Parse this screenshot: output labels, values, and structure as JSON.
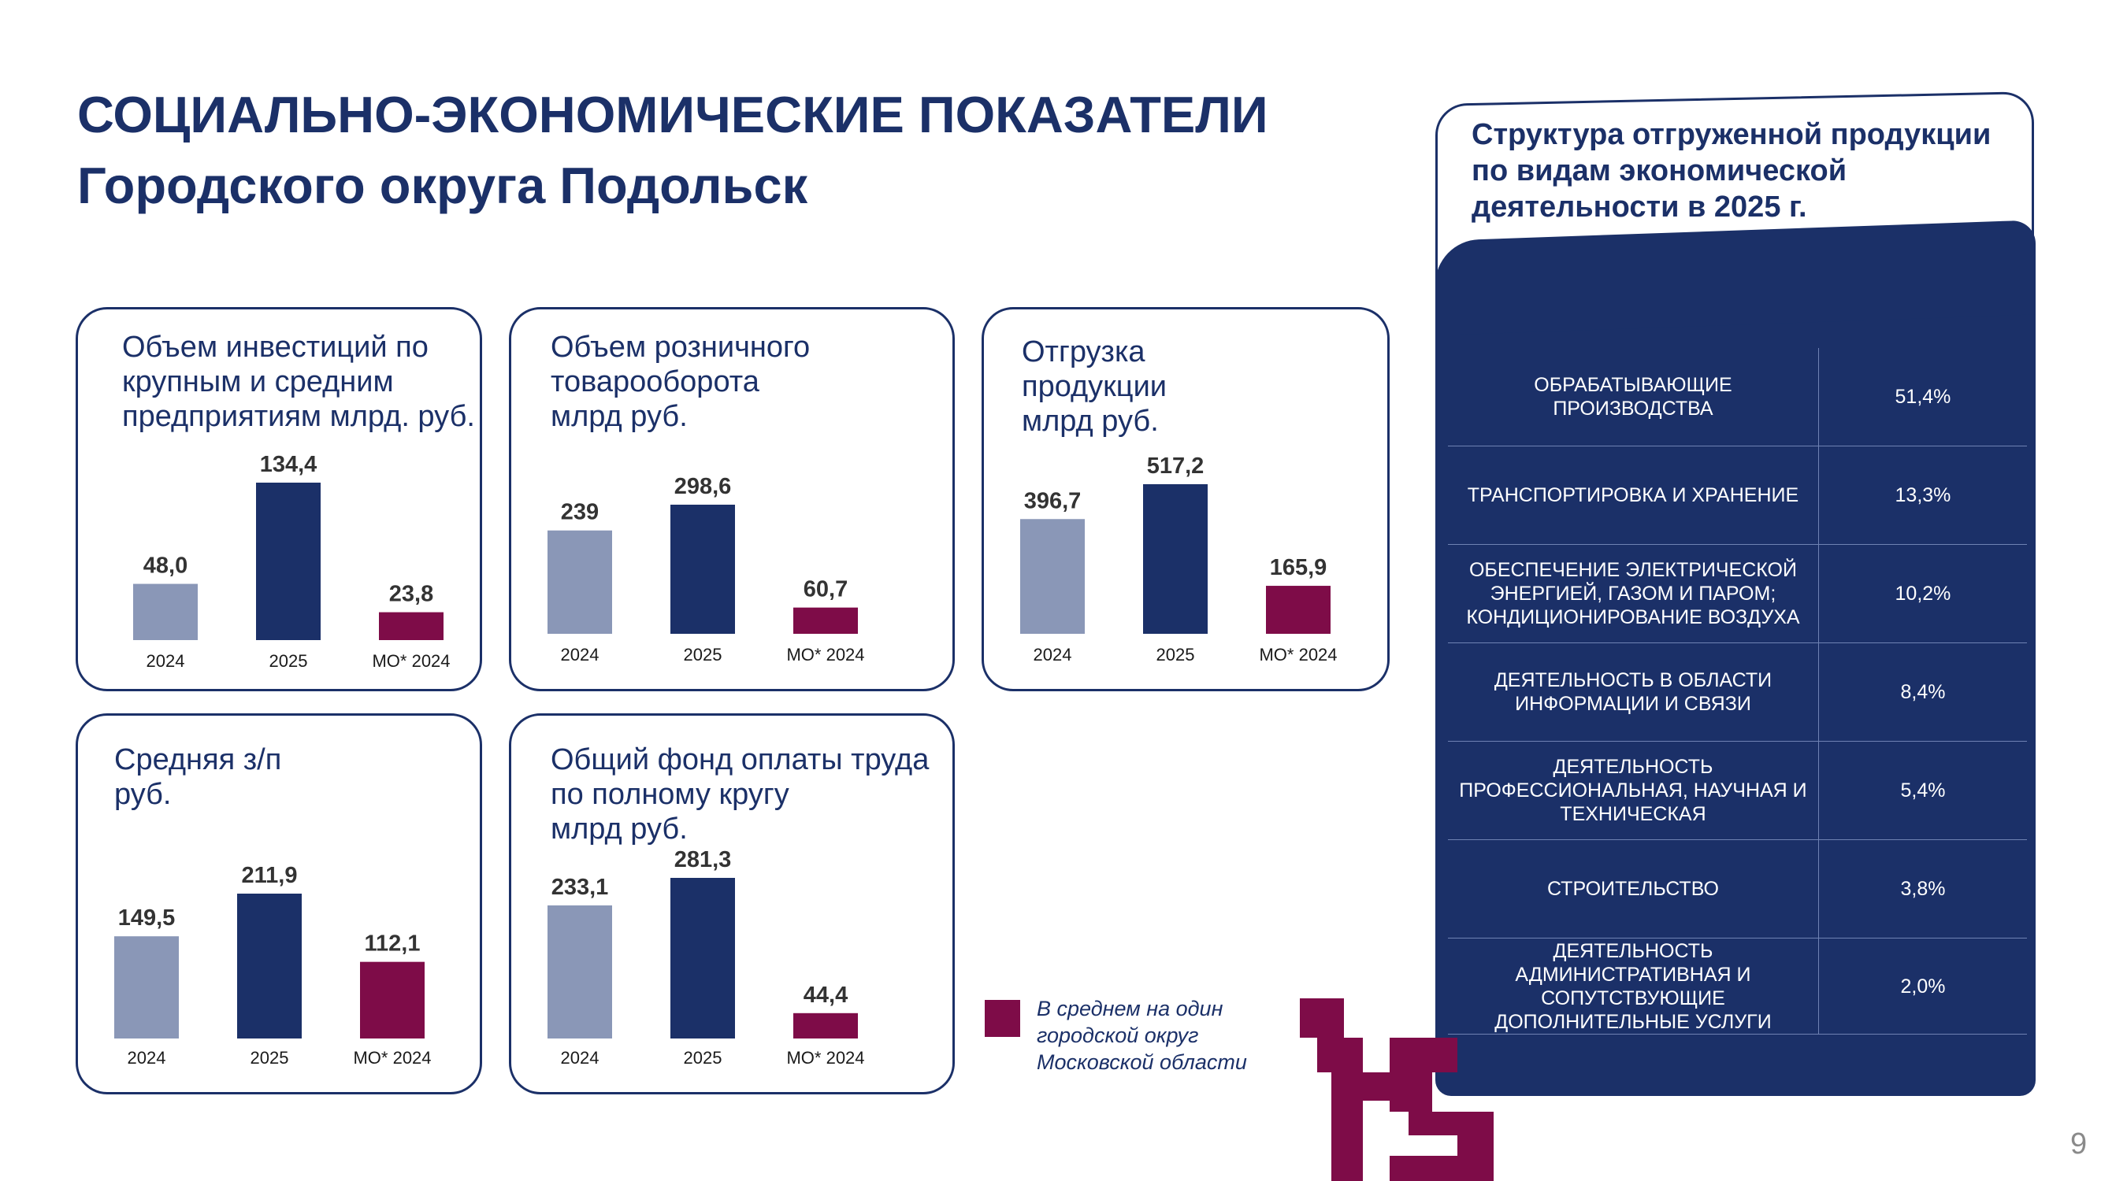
{
  "header": {
    "title_line1": "СОЦИАЛЬНО-ЭКОНОМИЧЕСКИЕ ПОКАЗАТЕЛИ",
    "title_line2": "Городского округа Подольск"
  },
  "colors": {
    "light": "#8a97b7",
    "dark": "#1b3068",
    "accent": "#7e0c48"
  },
  "chart_data": [
    {
      "type": "bar",
      "title": "Объем инвестиций по\nкрупным и средним\nпредприятиям млрд. руб.",
      "categories": [
        "2024",
        "2025",
        "МО* 2024"
      ],
      "values": [
        48.0,
        134.4,
        23.8
      ],
      "value_labels": [
        "48,0",
        "134,4",
        "23,8"
      ]
    },
    {
      "type": "bar",
      "title": "Объем розничного\nтоварооборота\nмлрд руб.",
      "categories": [
        "2024",
        "2025",
        "МО* 2024"
      ],
      "values": [
        239,
        298.6,
        60.7
      ],
      "value_labels": [
        "239",
        "298,6",
        "60,7"
      ]
    },
    {
      "type": "bar",
      "title": "Отгрузка\nпродукции\nмлрд руб.",
      "categories": [
        "2024",
        "2025",
        "МО* 2024"
      ],
      "values": [
        396.7,
        517.2,
        165.9
      ],
      "value_labels": [
        "396,7",
        "517,2",
        "165,9"
      ]
    },
    {
      "type": "bar",
      "title": "Средняя з/п\nруб.",
      "categories": [
        "2024",
        "2025",
        "МО* 2024"
      ],
      "values": [
        149.5,
        211.9,
        112.1
      ],
      "value_labels": [
        "149,5",
        "211,9",
        "112,1"
      ]
    },
    {
      "type": "bar",
      "title": "Общий фонд оплаты труда\nпо полному кругу\nмлрд руб.",
      "categories": [
        "2024",
        "2025",
        "МО* 2024"
      ],
      "values": [
        233.1,
        281.3,
        44.4
      ],
      "value_labels": [
        "233,1",
        "281,3",
        "44,4"
      ]
    }
  ],
  "legend": {
    "text": "В среднем на один городской округ Московской области"
  },
  "structure": {
    "title": "Структура отгруженной продукции по видам экономической деятельности в 2025 г.",
    "rows": [
      {
        "category": "ОБРАБАТЫВАЮЩИЕ ПРОИЗВОДСТВА",
        "value": "51,4%"
      },
      {
        "category": "ТРАНСПОРТИРОВКА И ХРАНЕНИЕ",
        "value": "13,3%"
      },
      {
        "category": "ОБЕСПЕЧЕНИЕ ЭЛЕКТРИЧЕСКОЙ ЭНЕРГИЕЙ, ГАЗОМ И ПАРОМ; КОНДИЦИОНИРОВАНИЕ ВОЗДУХА",
        "value": "10,2%"
      },
      {
        "category": "ДЕЯТЕЛЬНОСТЬ В ОБЛАСТИ ИНФОРМАЦИИ И СВЯЗИ",
        "value": "8,4%"
      },
      {
        "category": "ДЕЯТЕЛЬНОСТЬ ПРОФЕССИОНАЛЬНАЯ, НАУЧНАЯ И ТЕХНИЧЕСКАЯ",
        "value": "5,4%"
      },
      {
        "category": "СТРОИТЕЛЬСТВО",
        "value": "3,8%"
      },
      {
        "category": "ДЕЯТЕЛЬНОСТЬ АДМИНИСТРАТИВНАЯ И СОПУТСТВУЮЩИЕ ДОПОЛНИТЕЛЬНЫЕ УСЛУГИ",
        "value": "2,0%"
      }
    ]
  },
  "logo": {
    "icon": "anniversary-15-logo"
  },
  "page": {
    "number": "9"
  }
}
